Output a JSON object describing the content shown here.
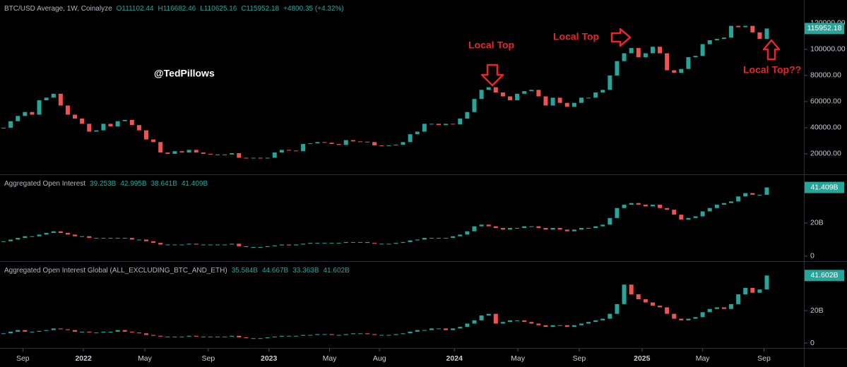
{
  "watermark": "@TedPillows",
  "chart_data": [
    {
      "type": "candlestick",
      "title": "BTC/USD Average, 1W, Coinalyze",
      "header_values": [
        "O111102.44",
        "H116682.46",
        "L110625.16",
        "C115952.18",
        "+4800.35 (+4.32%)"
      ],
      "values": [
        40000,
        45000,
        49000,
        52000,
        50000,
        61000,
        63000,
        66000,
        57000,
        50000,
        47000,
        43000,
        37000,
        38000,
        43000,
        41000,
        45000,
        46000,
        42000,
        38000,
        31000,
        29000,
        21000,
        20000,
        22000,
        21000,
        23000,
        21000,
        20000,
        19500,
        19000,
        19500,
        20500,
        17000,
        16500,
        17000,
        16800,
        17000,
        21000,
        23000,
        22500,
        22000,
        27500,
        28000,
        29000,
        28500,
        27500,
        26800,
        30500,
        29500,
        29300,
        29000,
        26500,
        26000,
        26500,
        27000,
        29000,
        35000,
        37000,
        43000,
        43000,
        42000,
        43000,
        42500,
        47000,
        52000,
        62000,
        69000,
        71000,
        67000,
        64000,
        61000,
        66000,
        68000,
        69000,
        64000,
        57000,
        63000,
        59000,
        56000,
        59000,
        63000,
        63000,
        67000,
        69000,
        80000,
        91000,
        97000,
        101000,
        94000,
        97000,
        102000,
        97000,
        84000,
        82000,
        85000,
        94000,
        95000,
        104000,
        107000,
        108000,
        109000,
        118000,
        117000,
        118000,
        113000,
        108000,
        115952.18
      ],
      "last_label": "115952.18",
      "up_color": "#26a69a",
      "down_color": "#ef5350",
      "ylim": [
        4300,
        137800
      ],
      "yticks": [
        {
          "value": 20000,
          "label": "20000.00"
        },
        {
          "value": 40000,
          "label": "40000.00"
        },
        {
          "value": 60000,
          "label": "60000.00"
        },
        {
          "value": 80000,
          "label": "80000.00"
        },
        {
          "value": 100000,
          "label": "100000.00"
        },
        {
          "value": 120000,
          "label": "120000.00"
        }
      ],
      "annotations": [
        "Local Top",
        "Local Top",
        "Local Top??"
      ]
    },
    {
      "type": "candlestick",
      "title": "Aggregated Open Interest",
      "header_values": [
        "39.253B",
        "42.995B",
        "38.641B",
        "41.409B"
      ],
      "values": [
        9,
        10,
        11,
        12,
        12,
        13,
        14,
        15,
        14,
        13,
        12,
        12,
        11,
        11,
        11,
        11,
        11,
        11,
        10,
        10,
        9,
        8,
        7,
        7,
        7,
        7,
        7.5,
        7,
        7,
        7,
        7,
        7,
        7.5,
        6,
        5.5,
        5.5,
        5.5,
        6,
        6.5,
        7,
        6.5,
        7,
        7.5,
        8,
        8,
        8,
        8,
        8,
        8.5,
        8.5,
        8.5,
        8,
        7.5,
        7.5,
        7.5,
        8,
        8.5,
        9.5,
        10,
        11,
        11,
        11,
        11,
        12,
        13,
        15,
        18,
        19,
        18,
        17,
        16,
        17,
        17,
        18,
        18,
        17,
        16,
        17,
        16,
        15,
        16,
        17,
        17,
        18,
        19,
        23,
        29,
        31,
        32,
        31,
        30,
        31,
        29,
        28,
        25,
        22,
        23,
        24,
        27,
        29,
        31,
        32,
        33,
        36,
        38,
        37,
        37,
        41.409
      ],
      "last_label": "41.409B",
      "up_color": "#26a69a",
      "down_color": "#ef5350",
      "ylim": [
        -3,
        48.9
      ],
      "yticks": [
        0,
        {
          "value": 20,
          "label": "20B"
        }
      ]
    },
    {
      "type": "candlestick",
      "title": "Aggregated Open Interest Global (ALL_EXCLUDING_BTC_AND_ETH)",
      "header_values": [
        "35.584B",
        "44.667B",
        "33.363B",
        "41.602B"
      ],
      "values": [
        6,
        7,
        8,
        7,
        7,
        7.5,
        8,
        9,
        8.5,
        8,
        7,
        7,
        6.5,
        6.5,
        7,
        7,
        8,
        7,
        6.5,
        6,
        5,
        4.5,
        4,
        4,
        4,
        4,
        4.5,
        4,
        4,
        4,
        4,
        4,
        4.5,
        3.5,
        3,
        3,
        3,
        3.5,
        4,
        4.5,
        4.5,
        4.5,
        5,
        5,
        5.5,
        5.5,
        5,
        5,
        5.5,
        6,
        6,
        5.5,
        5,
        5,
        5,
        5.5,
        6,
        7,
        8,
        8,
        9,
        9,
        8,
        9,
        10,
        12,
        14,
        17,
        18,
        12,
        13,
        14,
        14,
        13,
        12,
        11,
        10,
        11,
        11,
        10,
        11,
        12,
        13,
        14,
        15,
        18,
        24,
        36,
        30,
        27,
        25,
        23,
        22,
        18,
        15,
        14,
        15,
        16,
        19,
        21,
        22,
        21,
        24,
        30,
        34,
        31,
        33,
        41.602
      ],
      "last_label": "41.602B",
      "up_color": "#26a69a",
      "down_color": "#ef5350",
      "ylim": [
        -3,
        50
      ],
      "yticks": [
        0,
        {
          "value": 20,
          "label": "20B"
        }
      ],
      "xlim": [
        -0.5,
        111.9
      ],
      "xticks": [
        {
          "value": 2.7,
          "label": "Sep"
        },
        {
          "value": 11.2,
          "label": "2022"
        },
        {
          "value": 19.8,
          "label": "May"
        },
        {
          "value": 28.7,
          "label": "Sep"
        },
        {
          "value": 37.2,
          "label": "2023"
        },
        {
          "value": 45.7,
          "label": "May"
        },
        {
          "value": 52.7,
          "label": "Aug"
        },
        {
          "value": 63.2,
          "label": "2024"
        },
        {
          "value": 72.1,
          "label": "May"
        },
        {
          "value": 80.7,
          "label": "Sep"
        },
        {
          "value": 89.5,
          "label": "2025"
        },
        {
          "value": 98,
          "label": "May"
        },
        {
          "value": 106.6,
          "label": "Sep"
        }
      ]
    }
  ]
}
